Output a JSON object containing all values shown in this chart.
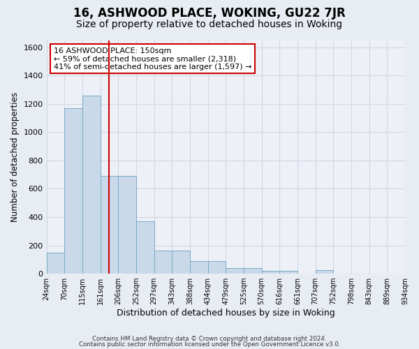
{
  "title": "16, ASHWOOD PLACE, WOKING, GU22 7JR",
  "subtitle": "Size of property relative to detached houses in Woking",
  "xlabel": "Distribution of detached houses by size in Woking",
  "ylabel": "Number of detached properties",
  "bar_values": [
    150,
    1170,
    1260,
    690,
    690,
    370,
    165,
    165,
    90,
    90,
    40,
    40,
    20,
    20,
    0,
    25,
    0,
    0,
    0,
    0
  ],
  "xtick_labels": [
    "24sqm",
    "70sqm",
    "115sqm",
    "161sqm",
    "206sqm",
    "252sqm",
    "297sqm",
    "343sqm",
    "388sqm",
    "434sqm",
    "479sqm",
    "525sqm",
    "570sqm",
    "616sqm",
    "661sqm",
    "707sqm",
    "752sqm",
    "798sqm",
    "843sqm",
    "889sqm",
    "934sqm"
  ],
  "bar_color": "#c9d9e9",
  "bar_edge_color": "#7aaac8",
  "vline_x_idx": 3,
  "vline_color": "#cc0000",
  "annotation_line1": "16 ASHWOOD PLACE: 150sqm",
  "annotation_line2": "← 59% of detached houses are smaller (2,318)",
  "annotation_line3": "41% of semi-detached houses are larger (1,597) →",
  "annotation_box_color": "#ffffff",
  "annotation_box_edge_color": "#cc0000",
  "ylim": [
    0,
    1650
  ],
  "yticks": [
    0,
    200,
    400,
    600,
    800,
    1000,
    1200,
    1400,
    1600
  ],
  "background_color": "#e8edf3",
  "plot_background_color": "#edf1f7",
  "grid_color": "#d0d8e4",
  "footer_line1": "Contains HM Land Registry data © Crown copyright and database right 2024.",
  "footer_line2": "Contains public sector information licensed under the Open Government Licence v3.0.",
  "title_fontsize": 12,
  "subtitle_fontsize": 10,
  "annotation_fontsize": 8
}
